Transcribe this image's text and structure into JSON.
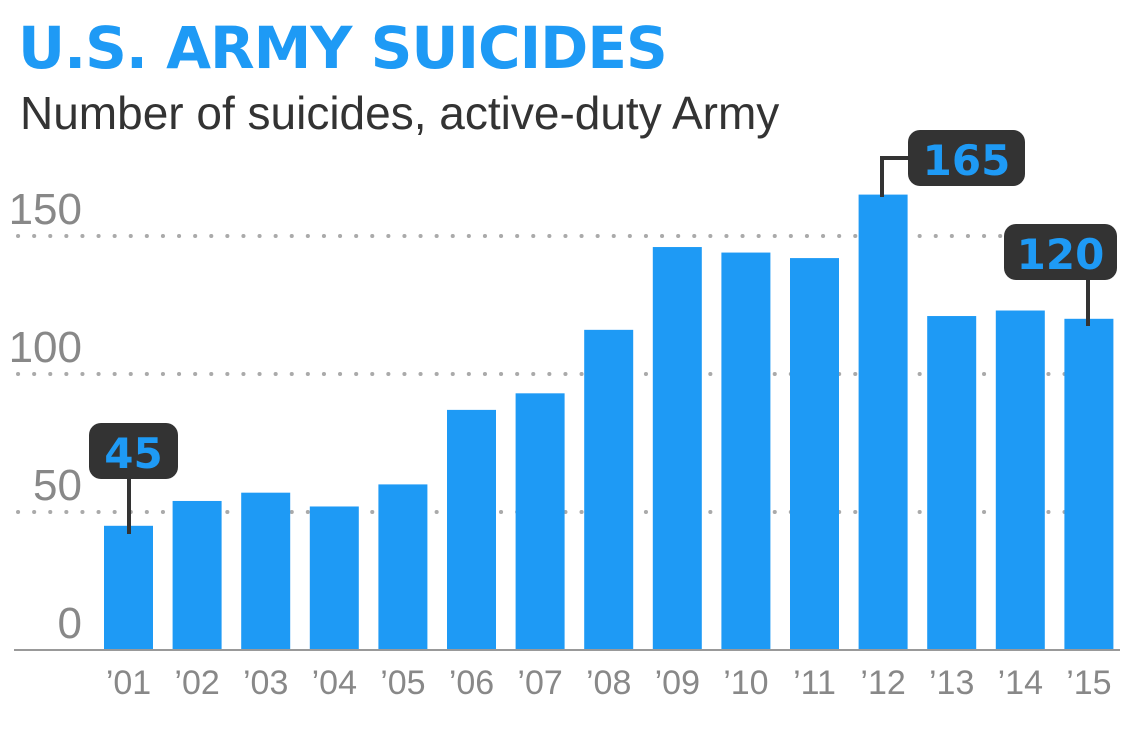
{
  "title": "U.S. ARMY SUICIDES",
  "subtitle": "Number of suicides, active-duty Army",
  "colors": {
    "bar": "#1e9af5",
    "callout_bg": "#333333",
    "callout_text": "#1e9af5",
    "grid": "#aaaaaa",
    "tick_text": "#888888",
    "baseline": "#999999"
  },
  "chart_data": {
    "type": "bar",
    "title": "U.S. ARMY SUICIDES",
    "subtitle": "Number of suicides, active-duty Army",
    "categories": [
      "’01",
      "’02",
      "’03",
      "’04",
      "’05",
      "’06",
      "’07",
      "’08",
      "’09",
      "’10",
      "’11",
      "’12",
      "’13",
      "’14",
      "’15"
    ],
    "values": [
      45,
      54,
      57,
      52,
      60,
      87,
      93,
      116,
      146,
      144,
      142,
      165,
      121,
      123,
      120
    ],
    "ylim": [
      0,
      165
    ],
    "yticks": [
      0,
      50,
      100,
      150
    ],
    "grid": "horizontal dotted at 50, 100, 150",
    "callouts": [
      {
        "index": 0,
        "label": "45"
      },
      {
        "index": 11,
        "label": "165"
      },
      {
        "index": 14,
        "label": "120"
      }
    ]
  }
}
